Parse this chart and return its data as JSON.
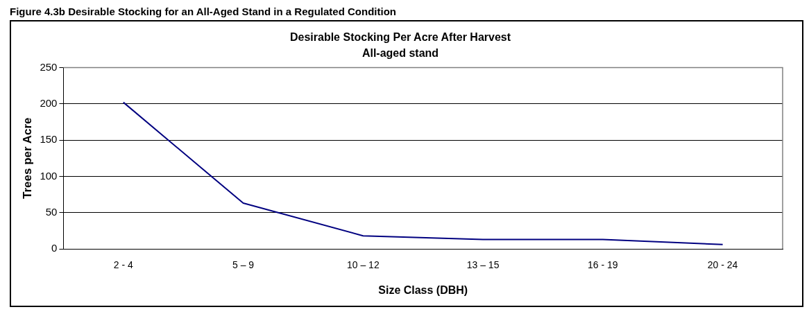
{
  "chart_data": {
    "type": "line",
    "title": "Desirable Stocking Per Acre After Harvest",
    "subtitle": "All-aged stand",
    "xlabel": "Size Class (DBH)",
    "ylabel": "Trees per Acre",
    "annotations": [
      "Figure 4.3b  Desirable Stocking for an All-Aged Stand in a Regulated Condition"
    ],
    "categories": [
      "2 - 4",
      "5 – 9",
      "10 – 12",
      "13 – 15",
      "16 - 19",
      "20 - 24"
    ],
    "series": [
      {
        "color": "#000080",
        "values": [
          202,
          63,
          18,
          13,
          13,
          6
        ]
      }
    ],
    "ylim": [
      0,
      250
    ],
    "yticks": [
      0,
      50,
      100,
      150,
      200,
      250
    ],
    "grid": "y",
    "legend": false,
    "marker": "none",
    "line_style": "solid"
  }
}
